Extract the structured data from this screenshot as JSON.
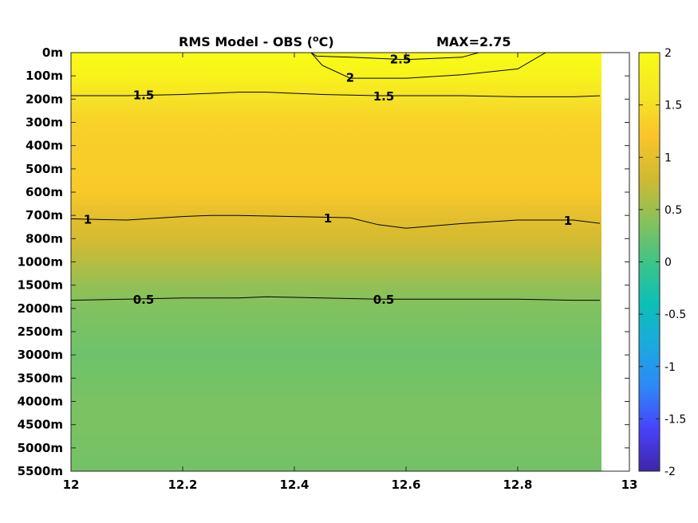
{
  "chart_data": {
    "type": "heatmap",
    "title_main": "RMS Model - OBS (",
    "title_unit_super": "o",
    "title_unit_tail": "C)",
    "title_max": "MAX=2.75",
    "x_ticks": [
      "12",
      "12.2",
      "12.4",
      "12.6",
      "12.8",
      "13"
    ],
    "y_ticks": [
      "0m",
      "100m",
      "200m",
      "300m",
      "400m",
      "500m",
      "600m",
      "700m",
      "800m",
      "1000m",
      "1500m",
      "2000m",
      "2500m",
      "3000m",
      "3500m",
      "4000m",
      "4500m",
      "5000m",
      "5500m"
    ],
    "xlim": [
      12,
      13
    ],
    "data_x_max": 12.95,
    "colorbar_ticks": [
      "2",
      "1.5",
      "1",
      "0.5",
      "0",
      "-0.5",
      "-1",
      "-1.5",
      "-2"
    ],
    "clim": [
      -2,
      2
    ],
    "colormap": [
      "#3e26a8",
      "#4743f8",
      "#2e87f7",
      "#1ca9df",
      "#0cbfb6",
      "#3ec487",
      "#8ac15a",
      "#d0ba31",
      "#fac42a",
      "#f5e625",
      "#f9fb15"
    ],
    "row_values": [
      2.1,
      1.85,
      1.55,
      1.35,
      1.3,
      1.3,
      1.25,
      1.0,
      0.85,
      0.65,
      0.45,
      0.35,
      0.3,
      0.25,
      0.28,
      0.32,
      0.32,
      0.3,
      0.28
    ],
    "contours": [
      {
        "level": 2.5,
        "x": [
          12.43,
          12.44,
          12.5,
          12.6,
          12.7,
          12.73
        ],
        "y": [
          0.0,
          0.15,
          0.2,
          0.3,
          0.2,
          0.0
        ]
      },
      {
        "level": 2.0,
        "x": [
          12.43,
          12.45,
          12.5,
          12.6,
          12.7,
          12.8,
          12.85
        ],
        "y": [
          0.0,
          0.55,
          1.1,
          1.1,
          0.95,
          0.7,
          0.0
        ]
      },
      {
        "level": 1.5,
        "x": [
          12.0,
          12.1,
          12.2,
          12.3,
          12.35,
          12.45,
          12.55,
          12.6,
          12.7,
          12.8,
          12.9,
          12.95
        ],
        "y": [
          1.85,
          1.85,
          1.8,
          1.7,
          1.7,
          1.8,
          1.85,
          1.85,
          1.85,
          1.9,
          1.9,
          1.85
        ]
      },
      {
        "level": 1.0,
        "x": [
          12.0,
          12.1,
          12.2,
          12.25,
          12.3,
          12.4,
          12.5,
          12.55,
          12.6,
          12.7,
          12.8,
          12.9,
          12.95
        ],
        "y": [
          7.15,
          7.2,
          7.05,
          7.0,
          7.0,
          7.05,
          7.1,
          7.4,
          7.55,
          7.35,
          7.2,
          7.2,
          7.35
        ]
      },
      {
        "level": 0.5,
        "x": [
          12.0,
          12.1,
          12.2,
          12.3,
          12.35,
          12.45,
          12.55,
          12.6,
          12.7,
          12.8,
          12.9,
          12.95
        ],
        "y": [
          10.65,
          10.6,
          10.55,
          10.55,
          10.5,
          10.55,
          10.6,
          10.6,
          10.6,
          10.6,
          10.65,
          10.65
        ]
      }
    ],
    "contour_labels": [
      {
        "text": "2.5",
        "x": 12.59,
        "y": 0.25
      },
      {
        "text": "2",
        "x": 12.5,
        "y": 1.05
      },
      {
        "text": "1.5",
        "x": 12.13,
        "y": 1.8
      },
      {
        "text": "1.5",
        "x": 12.56,
        "y": 1.85
      },
      {
        "text": "1",
        "x": 12.03,
        "y": 7.15
      },
      {
        "text": "1",
        "x": 12.46,
        "y": 7.1
      },
      {
        "text": "1",
        "x": 12.89,
        "y": 7.2
      },
      {
        "text": "0.5",
        "x": 12.13,
        "y": 10.6
      },
      {
        "text": "0.5",
        "x": 12.56,
        "y": 10.6
      }
    ]
  }
}
